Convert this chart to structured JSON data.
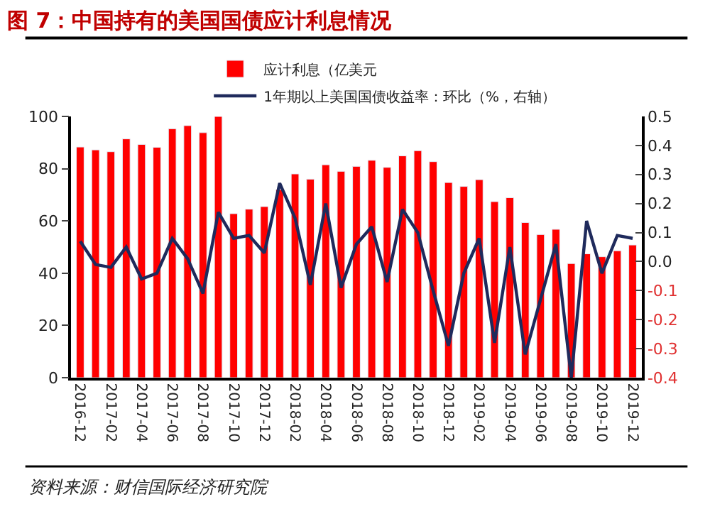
{
  "chart_data": {
    "type": "bar",
    "title": "图 7：中国持有的美国国债应计利息情况",
    "categories": [
      "2016-12",
      null,
      "2017-02",
      null,
      "2017-04",
      null,
      "2017-06",
      null,
      "2017-08",
      null,
      "2017-10",
      null,
      "2017-12",
      null,
      "2018-02",
      null,
      "2018-04",
      null,
      "2018-06",
      null,
      "2018-08",
      null,
      "2018-10",
      null,
      "2018-12",
      null,
      "2019-02",
      null,
      "2019-04",
      null,
      "2019-06",
      null,
      "2019-08",
      null,
      "2019-10",
      null,
      "2019-12"
    ],
    "series": [
      {
        "name": "应计利息（亿美元",
        "color": "#ff0000",
        "values": [
          88.3,
          87.2,
          86.5,
          91.4,
          89.3,
          88.2,
          95.3,
          96.5,
          93.8,
          100,
          62.8,
          64.5,
          65.5,
          72,
          78,
          76,
          81.5,
          79,
          80.9,
          83.2,
          80.5,
          84.9,
          86.9,
          82.7,
          74.7,
          73.2,
          75.8,
          67.4,
          68.9,
          59.4,
          54.8,
          56.8,
          43.7,
          47.4,
          46.3,
          48.6,
          50.8
        ]
      },
      {
        "name": "1年期以上美国国债收益率：环比（%，右轴）",
        "type": "line",
        "axis": "y2",
        "color": "#1f2a5c",
        "marker": "none",
        "line_style": "solid",
        "values": [
          0.07,
          -0.01,
          -0.02,
          0.05,
          -0.06,
          -0.04,
          0.08,
          0.01,
          -0.11,
          0.17,
          0.08,
          0.09,
          0.03,
          0.27,
          0.15,
          -0.08,
          0.2,
          -0.09,
          0.06,
          0.12,
          -0.07,
          0.18,
          0.1,
          -0.1,
          -0.29,
          -0.04,
          0.08,
          -0.28,
          0.05,
          -0.32,
          -0.13,
          0.06,
          -0.4,
          0.14,
          -0.04,
          0.09,
          0.08
        ]
      }
    ],
    "ylim": [
      0,
      100
    ],
    "yticks": [
      0,
      20,
      40,
      60,
      80,
      100
    ],
    "y2lim": [
      -0.4,
      0.5
    ],
    "y2ticks": [
      {
        "value": 0.5,
        "label": "0.5"
      },
      {
        "value": 0.4,
        "label": "0.4"
      },
      {
        "value": 0.3,
        "label": "0.3"
      },
      {
        "value": 0.2,
        "label": "0.2"
      },
      {
        "value": 0.1,
        "label": "0.1"
      },
      {
        "value": 0,
        "label": "0.0"
      },
      {
        "value": -0.1,
        "label": "-0.1"
      },
      {
        "value": -0.2,
        "label": "-0.2"
      },
      {
        "value": -0.3,
        "label": "-0.3"
      },
      {
        "value": -0.4,
        "label": "-0.4"
      }
    ],
    "legend": "top",
    "annotations": [
      "资料来源：财信国际经济研究院"
    ]
  }
}
